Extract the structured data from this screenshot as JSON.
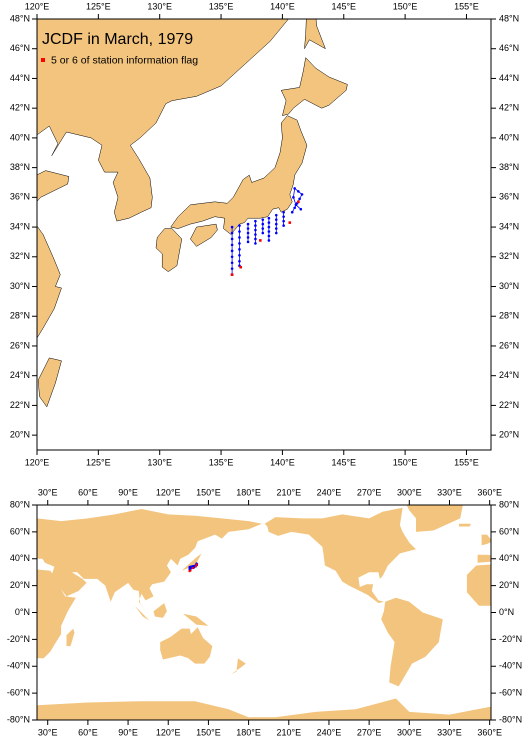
{
  "title": "JCDF in March, 1979",
  "legend": {
    "label": "5 or 6 of station information flag",
    "color": "#ff0000"
  },
  "track_color": "#0000ff",
  "land_color": "#f2c47e",
  "regional_map": {
    "xlim": [
      120,
      157
    ],
    "ylim": [
      19,
      48
    ],
    "xticks": [
      {
        "value": 120,
        "label": "120°E"
      },
      {
        "value": 125,
        "label": "125°E"
      },
      {
        "value": 130,
        "label": "130°E"
      },
      {
        "value": 135,
        "label": "135°E"
      },
      {
        "value": 140,
        "label": "140°E"
      },
      {
        "value": 145,
        "label": "145°E"
      },
      {
        "value": 150,
        "label": "150°E"
      },
      {
        "value": 155,
        "label": "155°E"
      }
    ],
    "yticks": [
      {
        "value": 20,
        "label": "20°N"
      },
      {
        "value": 22,
        "label": "22°N"
      },
      {
        "value": 24,
        "label": "24°N"
      },
      {
        "value": 26,
        "label": "26°N"
      },
      {
        "value": 28,
        "label": "28°N"
      },
      {
        "value": 30,
        "label": "30°N"
      },
      {
        "value": 32,
        "label": "32°N"
      },
      {
        "value": 34,
        "label": "34°N"
      },
      {
        "value": 36,
        "label": "36°N"
      },
      {
        "value": 38,
        "label": "38°N"
      },
      {
        "value": 40,
        "label": "40°N"
      },
      {
        "value": 42,
        "label": "42°N"
      },
      {
        "value": 44,
        "label": "44°N"
      },
      {
        "value": 46,
        "label": "46°N"
      },
      {
        "value": 48,
        "label": "48°N"
      }
    ]
  },
  "global_map": {
    "xlim": [
      22,
      361
    ],
    "ylim": [
      -80,
      80
    ],
    "xticks": [
      {
        "value": 30,
        "label": "30°E"
      },
      {
        "value": 60,
        "label": "60°E"
      },
      {
        "value": 90,
        "label": "90°E"
      },
      {
        "value": 120,
        "label": "120°E"
      },
      {
        "value": 150,
        "label": "150°E"
      },
      {
        "value": 180,
        "label": "180°E"
      },
      {
        "value": 210,
        "label": "210°E"
      },
      {
        "value": 240,
        "label": "240°E"
      },
      {
        "value": 270,
        "label": "270°E"
      },
      {
        "value": 300,
        "label": "300°E"
      },
      {
        "value": 330,
        "label": "330°E"
      },
      {
        "value": 360,
        "label": "360°E"
      }
    ],
    "yticks": [
      {
        "value": -80,
        "label": "-80°N"
      },
      {
        "value": -60,
        "label": "-60°N"
      },
      {
        "value": -40,
        "label": "-40°N"
      },
      {
        "value": -20,
        "label": "-20°N"
      },
      {
        "value": 0,
        "label": "0°N"
      },
      {
        "value": 20,
        "label": "20°N"
      },
      {
        "value": 40,
        "label": "40°N"
      },
      {
        "value": 60,
        "label": "60°N"
      },
      {
        "value": 80,
        "label": "80°N"
      }
    ]
  },
  "stations": {
    "tracks": [
      {
        "lon": [
          135.9,
          135.9,
          135.9,
          135.9,
          135.9,
          135.9,
          135.9,
          135.9,
          135.9
        ],
        "lat": [
          34.0,
          33.6,
          33.2,
          32.8,
          32.4,
          32.0,
          31.6,
          31.2,
          30.8
        ]
      },
      {
        "lon": [
          136.5,
          136.5,
          136.5,
          136.5,
          136.5,
          136.5,
          136.5,
          136.5
        ],
        "lat": [
          34.1,
          33.7,
          33.3,
          32.9,
          32.5,
          32.1,
          31.7,
          31.4
        ]
      },
      {
        "lon": [
          137.2,
          137.2,
          137.2,
          137.2,
          137.2
        ],
        "lat": [
          34.2,
          33.9,
          33.6,
          33.3,
          33.0
        ]
      },
      {
        "lon": [
          137.8,
          137.8,
          137.8,
          137.8,
          137.8,
          137.8
        ],
        "lat": [
          34.4,
          34.1,
          33.8,
          33.5,
          33.2,
          32.9
        ]
      },
      {
        "lon": [
          138.4,
          138.4,
          138.4,
          138.4
        ],
        "lat": [
          34.5,
          34.2,
          33.9,
          33.6
        ]
      },
      {
        "lon": [
          138.9,
          138.9,
          138.9,
          138.9,
          138.9,
          138.9
        ],
        "lat": [
          34.6,
          34.3,
          34.0,
          33.7,
          33.4,
          33.1
        ]
      },
      {
        "lon": [
          139.5,
          139.5,
          139.5,
          139.5,
          139.5
        ],
        "lat": [
          34.8,
          34.5,
          34.2,
          33.9,
          33.6
        ]
      },
      {
        "lon": [
          140.1,
          140.1,
          140.1,
          140.1
        ],
        "lat": [
          35.0,
          34.7,
          34.4,
          34.1
        ]
      },
      {
        "lon": [
          140.8,
          141.0,
          141.2,
          141.4,
          141.6,
          141.3,
          141.0,
          140.9,
          141.1,
          141.5
        ],
        "lat": [
          35.0,
          35.3,
          35.6,
          35.9,
          36.2,
          36.4,
          36.6,
          36.0,
          35.5,
          35.2
        ]
      }
    ],
    "flagged": {
      "lon": [
        135.9,
        136.6,
        138.2,
        140.6,
        141.3
      ],
      "lat": [
        30.8,
        31.3,
        33.1,
        34.3,
        35.7
      ]
    }
  }
}
